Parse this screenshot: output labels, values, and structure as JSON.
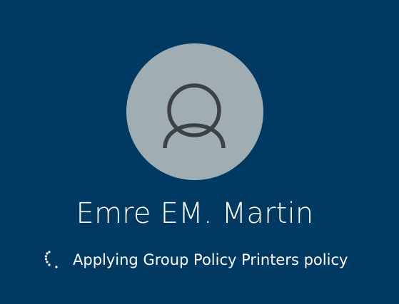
{
  "screen": {
    "background_color": "#003a63",
    "avatar_color": "#a0adb3",
    "avatar_icon": "user-silhouette-icon",
    "spinner_icon": "loading-spinner-icon"
  },
  "user": {
    "name": "Emre EM. Martin"
  },
  "status": {
    "message": "Applying Group Policy Printers policy"
  }
}
